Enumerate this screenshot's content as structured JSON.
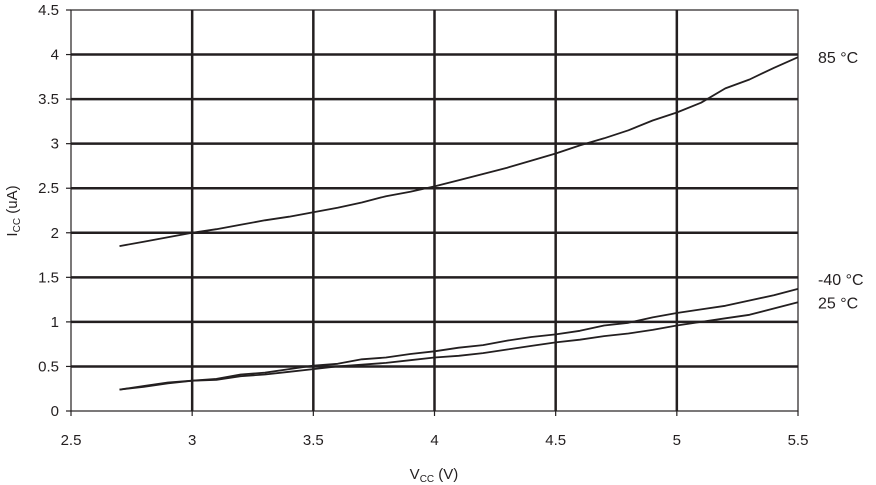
{
  "chart_data": {
    "type": "line",
    "xlabel": {
      "main": "V",
      "sub": "CC",
      "unit": " (V)"
    },
    "ylabel": {
      "main": "I",
      "sub": "CC",
      "unit": " (uA)"
    },
    "xlim": [
      2.5,
      5.5
    ],
    "ylim": [
      0,
      4.5
    ],
    "xticks": [
      2.5,
      3,
      3.5,
      4,
      4.5,
      5,
      5.5
    ],
    "yticks": [
      0,
      0.5,
      1,
      1.5,
      2,
      2.5,
      3,
      3.5,
      4,
      4.5
    ],
    "xtick_labels": [
      "2.5",
      "3",
      "3.5",
      "4",
      "4.5",
      "5",
      "5.5"
    ],
    "ytick_labels": [
      "0",
      "0.5",
      "1",
      "1.5",
      "2",
      "2.5",
      "3",
      "3.5",
      "4",
      "4.5"
    ],
    "grid": true,
    "series": [
      {
        "name": "85 °C",
        "x": [
          2.7,
          2.8,
          2.9,
          3.0,
          3.1,
          3.2,
          3.3,
          3.4,
          3.5,
          3.6,
          3.7,
          3.8,
          3.9,
          4.0,
          4.1,
          4.2,
          4.3,
          4.4,
          4.5,
          4.6,
          4.7,
          4.8,
          4.9,
          5.0,
          5.1,
          5.2,
          5.3,
          5.4,
          5.5
        ],
        "y": [
          1.85,
          1.9,
          1.95,
          2.0,
          2.04,
          2.09,
          2.14,
          2.18,
          2.23,
          2.28,
          2.34,
          2.41,
          2.46,
          2.52,
          2.59,
          2.66,
          2.73,
          2.81,
          2.89,
          2.98,
          3.06,
          3.15,
          3.26,
          3.35,
          3.46,
          3.62,
          3.72,
          3.85,
          3.97
        ]
      },
      {
        "name": "-40 °C",
        "x": [
          2.7,
          2.8,
          2.9,
          3.0,
          3.1,
          3.2,
          3.3,
          3.4,
          3.5,
          3.6,
          3.7,
          3.8,
          3.9,
          4.0,
          4.1,
          4.2,
          4.3,
          4.4,
          4.5,
          4.6,
          4.7,
          4.8,
          4.9,
          5.0,
          5.1,
          5.2,
          5.3,
          5.4,
          5.5
        ],
        "y": [
          0.24,
          0.28,
          0.32,
          0.34,
          0.36,
          0.41,
          0.43,
          0.47,
          0.51,
          0.53,
          0.58,
          0.6,
          0.64,
          0.67,
          0.71,
          0.74,
          0.79,
          0.83,
          0.86,
          0.9,
          0.96,
          0.99,
          1.05,
          1.1,
          1.14,
          1.18,
          1.24,
          1.3,
          1.37
        ]
      },
      {
        "name": "25 °C",
        "x": [
          2.7,
          2.8,
          2.9,
          3.0,
          3.1,
          3.2,
          3.3,
          3.4,
          3.5,
          3.6,
          3.7,
          3.8,
          3.9,
          4.0,
          4.1,
          4.2,
          4.3,
          4.4,
          4.5,
          4.6,
          4.7,
          4.8,
          4.9,
          5.0,
          5.1,
          5.2,
          5.3,
          5.4,
          5.5
        ],
        "y": [
          0.24,
          0.27,
          0.31,
          0.34,
          0.35,
          0.39,
          0.41,
          0.44,
          0.47,
          0.5,
          0.52,
          0.54,
          0.57,
          0.6,
          0.62,
          0.65,
          0.69,
          0.73,
          0.77,
          0.8,
          0.84,
          0.87,
          0.91,
          0.96,
          1.0,
          1.04,
          1.08,
          1.15,
          1.22
        ]
      }
    ]
  }
}
